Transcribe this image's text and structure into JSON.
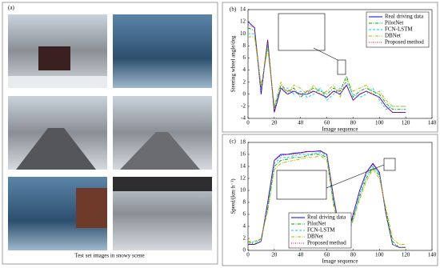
{
  "panel_a": {
    "label": "(a)",
    "caption": "Test set images in snowy scene"
  },
  "chart_data": [
    {
      "type": "line",
      "panel_label": "(b)",
      "x_label": "Image sequence",
      "y_label": "Steering wheel angle/deg",
      "x": [
        0,
        5,
        10,
        15,
        20,
        25,
        30,
        35,
        40,
        45,
        50,
        55,
        60,
        65,
        70,
        75,
        80,
        85,
        90,
        95,
        100,
        105,
        110,
        115,
        120
      ],
      "xlim": [
        0,
        140
      ],
      "xticks": [
        0,
        20,
        40,
        60,
        80,
        100,
        120,
        140
      ],
      "ylim": [
        -4,
        14
      ],
      "yticks": [
        -4,
        -2,
        0,
        2,
        4,
        6,
        8,
        10,
        12,
        14
      ],
      "legend": "upper right",
      "series": [
        {
          "name": "Real driving data",
          "color": "#0000ff",
          "linestyle": "solid",
          "values": [
            12,
            11,
            0,
            9,
            -3,
            1,
            0,
            0.5,
            0,
            0,
            0.5,
            0,
            -0.5,
            0.5,
            0,
            1.5,
            -1,
            0,
            0.5,
            0,
            -0.5,
            -2,
            -3,
            -3,
            -3
          ]
        },
        {
          "name": "PilotNet",
          "color": "#00a000",
          "linestyle": "dashdot",
          "values": [
            11,
            10.5,
            1,
            8.5,
            -2.5,
            1.5,
            0.5,
            1,
            -0.5,
            0.5,
            1,
            0.5,
            0,
            1,
            0.5,
            3,
            -0.5,
            0.5,
            1,
            0.5,
            0,
            -1.5,
            -2.5,
            -2.5,
            -2.5
          ]
        },
        {
          "name": "FCN-LSTM",
          "color": "#00c8ff",
          "linestyle": "dashed",
          "values": [
            10,
            10,
            0.5,
            8,
            -2,
            1,
            1,
            0,
            0.5,
            -0.5,
            0,
            1,
            -1,
            0,
            1,
            2,
            0,
            -0.5,
            0,
            1,
            -1,
            -2.5,
            -2,
            -2,
            -2
          ]
        },
        {
          "name": "DBNet",
          "color": "#b4b400",
          "linestyle": "dashdot",
          "values": [
            9.5,
            9.5,
            1.5,
            7.5,
            -2,
            2,
            0,
            1.5,
            1,
            0,
            1.5,
            0,
            0.5,
            1.5,
            -0.5,
            2.5,
            0.5,
            1,
            1.5,
            0,
            0.5,
            -1,
            -2,
            -2,
            -2
          ]
        },
        {
          "name": "Proposed method",
          "color": "#ff0000",
          "linestyle": "dotted",
          "values": [
            11.5,
            11,
            0.5,
            9,
            -3,
            1,
            0.5,
            0.5,
            0,
            0.5,
            0.5,
            0,
            -0.5,
            0.5,
            0.5,
            1.5,
            -1,
            0,
            0.5,
            0,
            -0.5,
            -2,
            -3,
            -3,
            -3
          ]
        }
      ]
    },
    {
      "type": "line",
      "panel_label": "(c)",
      "x_label": "Image sequence",
      "y_label": "Speed/(km·h⁻¹)",
      "x": [
        0,
        5,
        10,
        15,
        20,
        25,
        30,
        35,
        40,
        45,
        50,
        55,
        60,
        65,
        70,
        75,
        80,
        85,
        90,
        95,
        100,
        105,
        110,
        115,
        120
      ],
      "xlim": [
        0,
        140
      ],
      "xticks": [
        0,
        20,
        40,
        60,
        80,
        100,
        120,
        140
      ],
      "ylim": [
        0,
        18
      ],
      "yticks": [
        0,
        2,
        4,
        6,
        8,
        10,
        12,
        14,
        16,
        18
      ],
      "legend": "lower center",
      "series": [
        {
          "name": "Real driving data",
          "color": "#0000ff",
          "linestyle": "solid",
          "values": [
            1,
            1,
            1.5,
            8,
            15,
            16,
            16,
            16.2,
            16.3,
            16.5,
            16.5,
            16.6,
            16,
            9,
            3,
            2,
            6,
            10,
            13,
            14.5,
            13,
            6,
            1,
            0.5,
            0.5
          ]
        },
        {
          "name": "PilotNet",
          "color": "#00a000",
          "linestyle": "dashdot",
          "values": [
            1.5,
            1,
            2,
            7,
            14,
            15,
            15.2,
            15.5,
            15.5,
            15.8,
            16,
            16,
            15.5,
            8,
            3.5,
            2.5,
            5.5,
            9,
            12,
            13.8,
            12.5,
            6.5,
            1.5,
            0.5,
            0.5
          ]
        },
        {
          "name": "FCN-LSTM",
          "color": "#00c8ff",
          "linestyle": "dashed",
          "values": [
            1,
            1.5,
            1.5,
            7.5,
            14.5,
            15.5,
            15.5,
            15.8,
            16,
            16,
            16.2,
            16.3,
            15.8,
            8.5,
            3,
            2,
            5,
            9.5,
            12.5,
            14,
            12.8,
            6,
            1,
            0.5,
            0.5
          ]
        },
        {
          "name": "DBNet",
          "color": "#b4b400",
          "linestyle": "dashdot",
          "values": [
            1.5,
            1.5,
            2,
            6.5,
            13.5,
            14.5,
            14.8,
            15,
            15.2,
            15.5,
            15.5,
            15.8,
            15,
            7.5,
            3.5,
            3,
            5,
            8.5,
            11.5,
            13.5,
            12,
            7,
            2,
            1,
            1
          ]
        },
        {
          "name": "Proposed method",
          "color": "#ff0000",
          "linestyle": "dotted",
          "values": [
            1,
            1,
            1.5,
            8,
            15,
            15.8,
            16,
            16,
            16.2,
            16.4,
            16.5,
            16.5,
            16,
            9,
            3,
            2,
            6,
            10,
            13,
            14.3,
            13,
            6,
            1,
            0.5,
            0.5
          ]
        }
      ]
    }
  ]
}
